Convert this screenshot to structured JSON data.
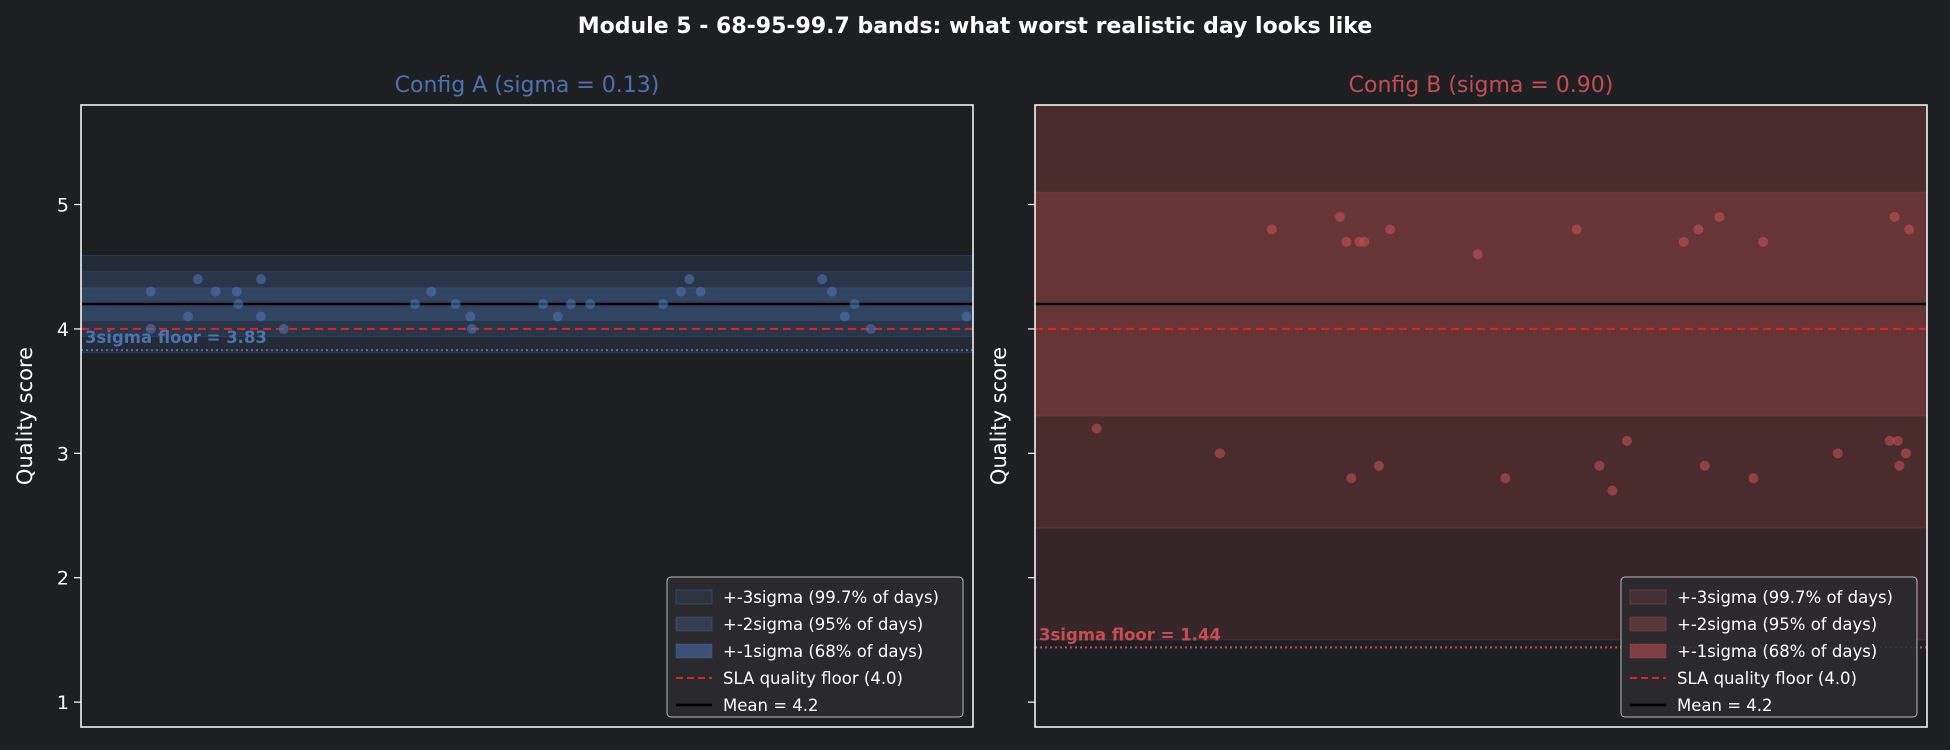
{
  "figure_title": "Module 5 - 68-95-99.7 bands: what worst realistic day looks like",
  "colors": {
    "background": "#1e1f23",
    "axes_face": "#1e1f23",
    "spine": "#ffffff",
    "text": "#ffffff",
    "config_a": "#4c72b0",
    "config_b": "#c44e52",
    "sla": "#e32222",
    "mean": "#000000"
  },
  "chart_data": [
    {
      "type": "scatter",
      "panel": "config-a",
      "title": "Config A (sigma = 0.13)",
      "ylabel": "Quality score",
      "xlabel": "",
      "color": "#4c72b0",
      "xlim": [
        -1.5,
        53.5
      ],
      "ylim": [
        0.8,
        5.8
      ],
      "yticks": [
        1,
        2,
        3,
        4,
        5
      ],
      "grid": false,
      "mean": 4.2,
      "sigma": 0.13,
      "sla": 4.0,
      "floor": 3.83,
      "floor_label": "3sigma floor = 3.83",
      "legend_position": "lower-right",
      "legend": [
        "+-3sigma (99.7% of days)",
        "+-2sigma (95% of days)",
        "+-1sigma (68% of days)",
        "SLA quality floor (4.0)",
        "Mean = 4.2"
      ],
      "points": {
        "x": [
          2.8,
          2.8,
          5.1,
          5.7,
          6.8,
          8.1,
          8.2,
          9.6,
          9.6,
          11.0,
          19.1,
          20.1,
          21.6,
          22.5,
          22.6,
          27.0,
          27.9,
          28.7,
          29.9,
          34.4,
          35.5,
          36.0,
          36.7,
          44.2,
          44.8,
          45.6,
          46.2,
          47.2,
          53.1
        ],
        "y": [
          4.3,
          4.0,
          4.1,
          4.4,
          4.3,
          4.3,
          4.2,
          4.4,
          4.1,
          4.0,
          4.2,
          4.3,
          4.2,
          4.1,
          4.0,
          4.2,
          4.1,
          4.2,
          4.2,
          4.2,
          4.3,
          4.4,
          4.3,
          4.4,
          4.3,
          4.1,
          4.2,
          4.0,
          4.1
        ]
      }
    },
    {
      "type": "scatter",
      "panel": "config-b",
      "title": "Config B (sigma = 0.90)",
      "ylabel": "Quality score",
      "xlabel": "",
      "color": "#c44e52",
      "xlim": [
        -1.5,
        53.5
      ],
      "ylim": [
        0.8,
        5.8
      ],
      "yticks": [
        1,
        2,
        3,
        4,
        5
      ],
      "grid": false,
      "mean": 4.2,
      "sigma": 0.9,
      "sla": 4.0,
      "floor": 1.44,
      "floor_label": "3sigma floor = 1.44",
      "legend_position": "lower-right",
      "legend": [
        "+-3sigma (99.7% of days)",
        "+-2sigma (95% of days)",
        "+-1sigma (68% of days)",
        "SLA quality floor (4.0)",
        "Mean = 4.2"
      ],
      "points": {
        "x": [
          2.3,
          9.9,
          13.1,
          17.3,
          17.7,
          18.0,
          18.5,
          18.8,
          19.7,
          20.4,
          25.8,
          27.5,
          31.9,
          33.3,
          34.1,
          35.0,
          38.5,
          39.4,
          39.8,
          40.7,
          42.8,
          43.4,
          48.0,
          51.2,
          51.5,
          51.7,
          51.8,
          52.2,
          52.4
        ],
        "y": [
          3.2,
          3.0,
          4.8,
          4.9,
          4.7,
          2.8,
          4.7,
          4.7,
          2.9,
          4.8,
          4.6,
          2.8,
          4.8,
          2.9,
          2.7,
          3.1,
          4.7,
          4.8,
          2.9,
          4.9,
          2.8,
          4.7,
          3.0,
          3.1,
          4.9,
          3.1,
          2.9,
          3.0,
          4.8
        ]
      }
    }
  ]
}
